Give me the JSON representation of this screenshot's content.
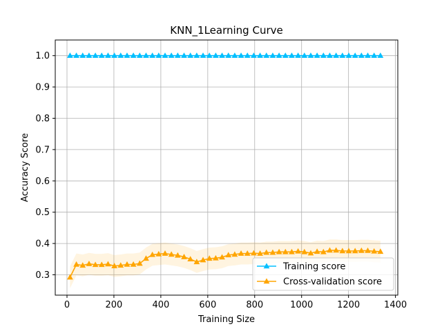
{
  "chart_data": {
    "type": "line",
    "title": "KNN_1Learning Curve",
    "xlabel": "Training Size",
    "ylabel": "Accuracy Score",
    "xlim": [
      -50,
      1410
    ],
    "ylim": [
      0.235,
      1.05
    ],
    "xticks": [
      0,
      200,
      400,
      600,
      800,
      1000,
      1200,
      1400
    ],
    "yticks": [
      0.3,
      0.4,
      0.5,
      0.6,
      0.7,
      0.8,
      0.9,
      1.0
    ],
    "ytick_labels": [
      "0.3",
      "0.4",
      "0.5",
      "0.6",
      "0.7",
      "0.8",
      "0.9",
      "1.0"
    ],
    "grid": true,
    "legend": "lower-right",
    "x": [
      13,
      40,
      67,
      94,
      121,
      148,
      175,
      202,
      229,
      256,
      283,
      310,
      337,
      364,
      391,
      418,
      445,
      472,
      499,
      526,
      553,
      580,
      607,
      634,
      661,
      688,
      715,
      742,
      769,
      796,
      823,
      850,
      877,
      904,
      931,
      958,
      985,
      1012,
      1039,
      1066,
      1093,
      1120,
      1147,
      1174,
      1201,
      1228,
      1255,
      1282,
      1309,
      1336
    ],
    "series": [
      {
        "name": "Training score",
        "color": "#00bfff",
        "marker": "triangle",
        "values": [
          1.0,
          1.0,
          1.0,
          1.0,
          1.0,
          1.0,
          1.0,
          1.0,
          1.0,
          1.0,
          1.0,
          1.0,
          1.0,
          1.0,
          1.0,
          1.0,
          1.0,
          1.0,
          1.0,
          1.0,
          1.0,
          1.0,
          1.0,
          1.0,
          1.0,
          1.0,
          1.0,
          1.0,
          1.0,
          1.0,
          1.0,
          1.0,
          1.0,
          1.0,
          1.0,
          1.0,
          1.0,
          1.0,
          1.0,
          1.0,
          1.0,
          1.0,
          1.0,
          1.0,
          1.0,
          1.0,
          1.0,
          1.0,
          1.0,
          1.0
        ],
        "band": 0.0
      },
      {
        "name": "Cross-validation score",
        "color": "#ffa500",
        "marker": "triangle",
        "values": [
          0.292,
          0.333,
          0.33,
          0.335,
          0.332,
          0.332,
          0.334,
          0.328,
          0.33,
          0.333,
          0.333,
          0.336,
          0.352,
          0.364,
          0.366,
          0.368,
          0.365,
          0.362,
          0.357,
          0.35,
          0.341,
          0.347,
          0.352,
          0.353,
          0.356,
          0.363,
          0.365,
          0.368,
          0.368,
          0.369,
          0.368,
          0.371,
          0.371,
          0.373,
          0.373,
          0.373,
          0.375,
          0.373,
          0.369,
          0.374,
          0.373,
          0.378,
          0.378,
          0.376,
          0.376,
          0.376,
          0.377,
          0.377,
          0.375,
          0.374
        ],
        "band": 0.035
      }
    ]
  }
}
